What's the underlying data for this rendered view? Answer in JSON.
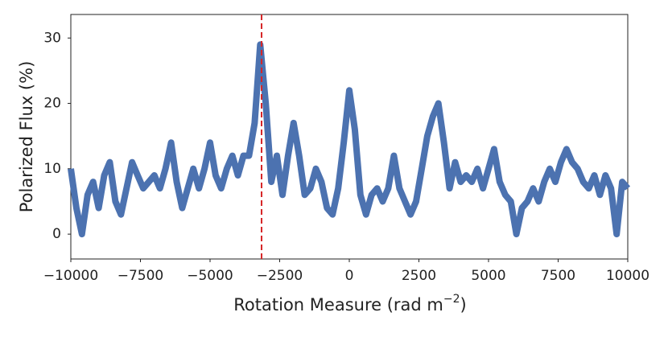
{
  "chart_data": {
    "type": "line",
    "xlabel": {
      "text": "Rotation Measure (rad m",
      "sup": "−2",
      "close": ")"
    },
    "ylabel": "Polarized Flux (%)",
    "x": [
      -10000,
      -9800,
      -9600,
      -9400,
      -9200,
      -9000,
      -8800,
      -8600,
      -8400,
      -8200,
      -8000,
      -7800,
      -7600,
      -7400,
      -7200,
      -7000,
      -6800,
      -6600,
      -6400,
      -6200,
      -6000,
      -5800,
      -5600,
      -5400,
      -5200,
      -5000,
      -4800,
      -4600,
      -4400,
      -4200,
      -4000,
      -3800,
      -3600,
      -3400,
      -3200,
      -3000,
      -2800,
      -2600,
      -2400,
      -2200,
      -2000,
      -1800,
      -1600,
      -1400,
      -1200,
      -1000,
      -800,
      -600,
      -400,
      -200,
      0,
      200,
      400,
      600,
      800,
      1000,
      1200,
      1400,
      1600,
      1800,
      2000,
      2200,
      2400,
      2600,
      2800,
      3000,
      3200,
      3400,
      3600,
      3800,
      4000,
      4200,
      4400,
      4600,
      4800,
      5000,
      5200,
      5400,
      5600,
      5800,
      6000,
      6200,
      6400,
      6600,
      6800,
      7000,
      7200,
      7400,
      7600,
      7800,
      8000,
      8200,
      8400,
      8600,
      8800,
      9000,
      9200,
      9400,
      9600,
      9800,
      10000
    ],
    "series": [
      {
        "color": "#4c72b0",
        "values": [
          10,
          4,
          0,
          6,
          8,
          4,
          9,
          11,
          5,
          3,
          7,
          11,
          9,
          7,
          8,
          9,
          7,
          10,
          14,
          8,
          4,
          7,
          10,
          7,
          10,
          14,
          9,
          7,
          10,
          12,
          9,
          12,
          12,
          17,
          29,
          20,
          8,
          12,
          6,
          12,
          17,
          12,
          6,
          7,
          10,
          8,
          4,
          3,
          7,
          14,
          22,
          16,
          6,
          3,
          6,
          7,
          5,
          7,
          12,
          7,
          5,
          3,
          5,
          10,
          15,
          18,
          20,
          14,
          7,
          11,
          8,
          9,
          8,
          10,
          7,
          10,
          13,
          8,
          6,
          5,
          0,
          4,
          5,
          7,
          5,
          8,
          10,
          8,
          11,
          13,
          11,
          10,
          8,
          7,
          9,
          6,
          9,
          7,
          0,
          8,
          7
        ]
      }
    ],
    "vline": {
      "value": -3150,
      "color": "#d62728"
    },
    "xlim": [
      -10000,
      10000
    ],
    "xticks": [
      {
        "value": -10000,
        "label": "−10000"
      },
      {
        "value": -7500,
        "label": "−7500"
      },
      {
        "value": -5000,
        "label": "−5000"
      },
      {
        "value": -2500,
        "label": "−2500"
      },
      0,
      2500,
      5000,
      7500,
      10000
    ],
    "ylim": [
      -3.8,
      33.6
    ],
    "yticks": [
      0,
      10,
      20,
      30
    ],
    "grid": false
  }
}
